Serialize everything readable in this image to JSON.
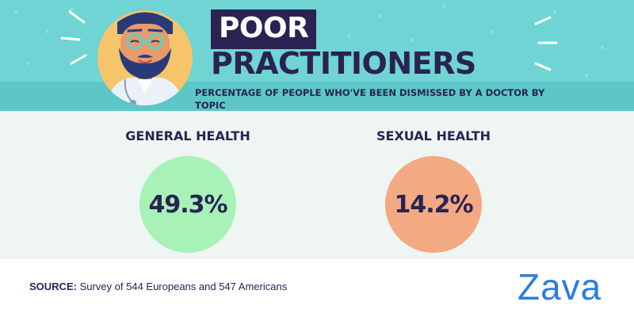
{
  "header": {
    "title_line1": "POOR",
    "title_line2": "PRACTITIONERS",
    "subtitle": "PERCENTAGE OF PEOPLE WHO'VE BEEN DISMISSED BY A DOCTOR BY TOPIC"
  },
  "stats": [
    {
      "label": "GENERAL HEALTH",
      "value": "49.3%",
      "color": "#a8f2b8"
    },
    {
      "label": "SEXUAL HEALTH",
      "value": "14.2%",
      "color": "#f3a982"
    }
  ],
  "footer": {
    "source_label": "SOURCE:",
    "source_text": "Survey of 544 Europeans and 547 Americans",
    "brand": "Zava"
  },
  "colors": {
    "header_bg": "#6fd4d3",
    "body_bg": "#eef5f3",
    "navy": "#2a2351",
    "brand_blue": "#2a7de1"
  },
  "icons": {
    "avatar": "doctor-avatar-icon"
  }
}
